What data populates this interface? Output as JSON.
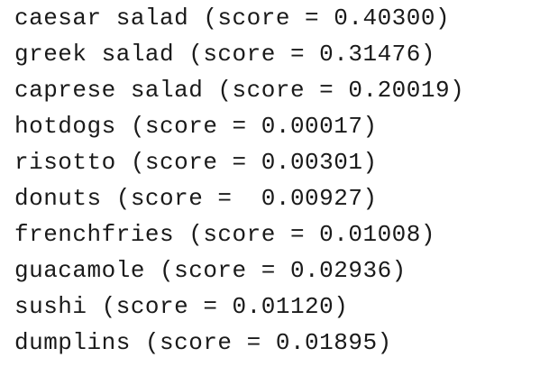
{
  "lines": [
    "caesar salad (score = 0.40300)",
    "greek salad (score = 0.31476)",
    "caprese salad (score = 0.20019)",
    "hotdogs (score = 0.00017)",
    "risotto (score = 0.00301)",
    "donuts (score =  0.00927)",
    "frenchfries (score = 0.01008)",
    "guacamole (score = 0.02936)",
    "sushi (score = 0.01120)",
    "dumplins (score = 0.01895)"
  ]
}
